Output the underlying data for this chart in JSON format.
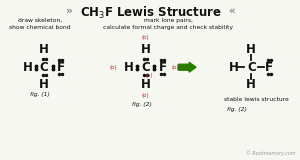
{
  "bg_color": "#f7f7f2",
  "title_left_arrow": "»",
  "title_right_arrow": "«",
  "title_text": "CH$_3$F Lewis Structure",
  "title_arrow_color": "#888888",
  "title_color": "#111111",
  "caption1": "draw skeleton,\nshow chemical bond",
  "caption2": "mark lone pairs,\ncalculate formal charge and check stability",
  "caption3": "stable lewis structure",
  "fig1_label": "fig. (1)",
  "fig2_label": "fig. (2)",
  "footer": "© Rootmemory.com",
  "footer_color": "#999999",
  "red_color": "#cc2200",
  "green_color": "#2a7a00",
  "dark_color": "#111111"
}
